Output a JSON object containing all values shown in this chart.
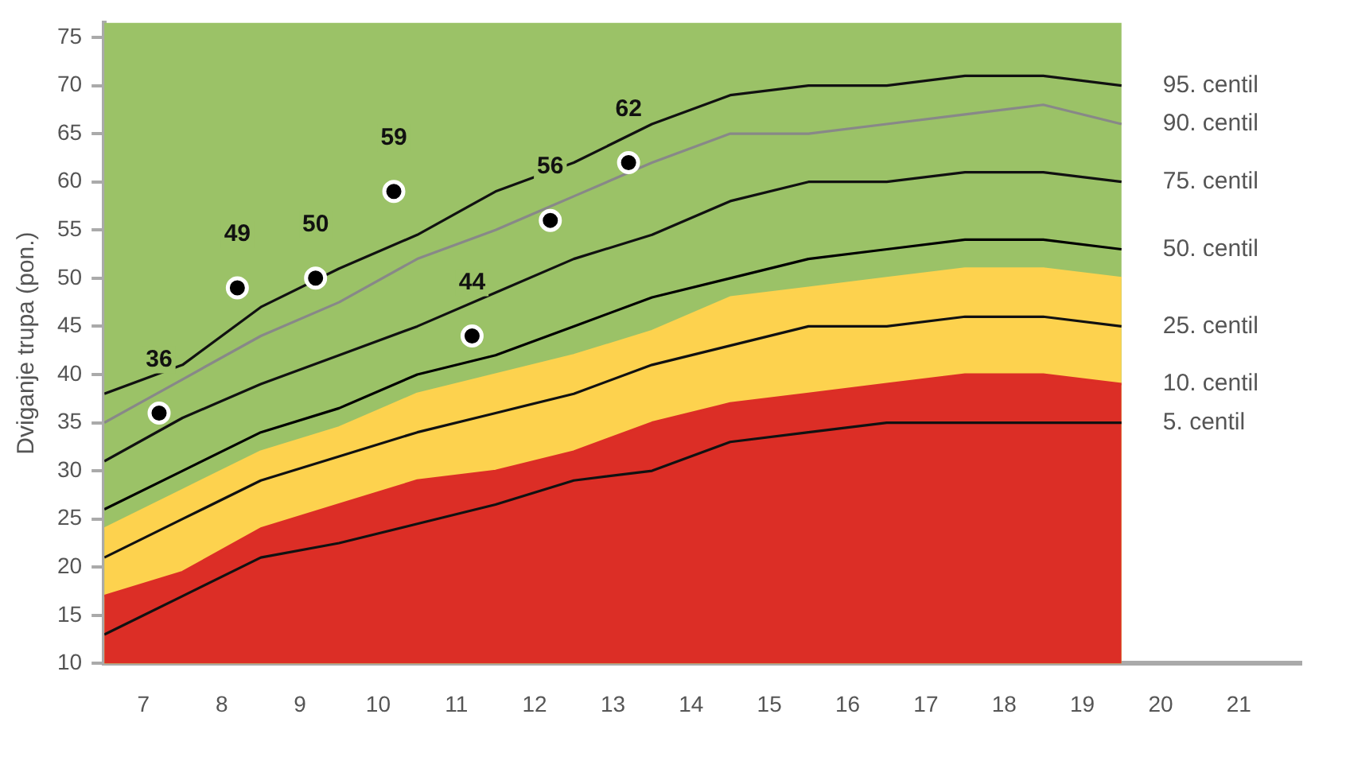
{
  "chart_data": {
    "type": "line",
    "ylabel": "Dviganje trupa (pon.)",
    "xlim": [
      6.5,
      21.8
    ],
    "ylim": [
      10,
      76.5
    ],
    "xticks": [
      7,
      8,
      9,
      10,
      11,
      12,
      13,
      14,
      15,
      16,
      17,
      18,
      19,
      20,
      21
    ],
    "yticks": [
      10,
      15,
      20,
      25,
      30,
      35,
      40,
      45,
      50,
      55,
      60,
      65,
      70,
      75
    ],
    "grid": false,
    "legend": false,
    "bands": [
      {
        "axis": "x",
        "from": 6.5,
        "to": 19.5,
        "color": "#9bc267"
      }
    ],
    "series": [
      {
        "name": "95. centil",
        "type": "line",
        "color": "#111111",
        "x": [
          6.5,
          7.5,
          8.5,
          9.5,
          10.5,
          11.5,
          12.5,
          13.5,
          14.5,
          15.5,
          16.5,
          17.5,
          18.5,
          19.5
        ],
        "values": [
          38,
          41,
          47,
          51,
          54.5,
          59,
          62,
          66,
          69,
          70,
          70,
          71,
          71,
          70
        ]
      },
      {
        "name": "90. centil",
        "type": "line",
        "color": "#888888",
        "x": [
          6.5,
          7.5,
          8.5,
          9.5,
          10.5,
          11.5,
          12.5,
          13.5,
          14.5,
          15.5,
          16.5,
          17.5,
          18.5,
          19.5
        ],
        "values": [
          35,
          39.5,
          44,
          47.5,
          52,
          55,
          58.5,
          62,
          65,
          65,
          66,
          67,
          68,
          66
        ]
      },
      {
        "name": "75. centil",
        "type": "line",
        "color": "#111111",
        "x": [
          6.5,
          7.5,
          8.5,
          9.5,
          10.5,
          11.5,
          12.5,
          13.5,
          14.5,
          15.5,
          16.5,
          17.5,
          18.5,
          19.5
        ],
        "values": [
          31,
          35.5,
          39,
          42,
          45,
          48.5,
          52,
          54.5,
          58,
          60,
          60,
          61,
          61,
          60
        ]
      },
      {
        "name": "50. centil",
        "type": "line",
        "color": "#000000",
        "x": [
          6.5,
          7.5,
          8.5,
          9.5,
          10.5,
          11.5,
          12.5,
          13.5,
          14.5,
          15.5,
          16.5,
          17.5,
          18.5,
          19.5
        ],
        "values": [
          26,
          30,
          34,
          36.5,
          40,
          42,
          45,
          48,
          50,
          52,
          53,
          54,
          54,
          53
        ]
      },
      {
        "type": "area",
        "color": "#fdd24e",
        "x": [
          6.5,
          7.5,
          8.5,
          9.5,
          10.5,
          11.5,
          12.5,
          13.5,
          14.5,
          15.5,
          16.5,
          17.5,
          18.5,
          19.5
        ],
        "values": [
          24,
          28,
          32,
          34.5,
          38,
          40,
          42,
          44.5,
          48,
          49,
          50,
          51,
          51,
          50
        ]
      },
      {
        "name": "25. centil",
        "type": "line",
        "color": "#111111",
        "x": [
          6.5,
          7.5,
          8.5,
          9.5,
          10.5,
          11.5,
          12.5,
          13.5,
          14.5,
          15.5,
          16.5,
          17.5,
          18.5,
          19.5
        ],
        "values": [
          21,
          25,
          29,
          31.5,
          34,
          36,
          38,
          41,
          43,
          45,
          45,
          46,
          46,
          45
        ]
      },
      {
        "name": "10. centil",
        "type": "area",
        "color": "#dc2e26",
        "x": [
          6.5,
          7.5,
          8.5,
          9.5,
          10.5,
          11.5,
          12.5,
          13.5,
          14.5,
          15.5,
          16.5,
          17.5,
          18.5,
          19.5
        ],
        "values": [
          17,
          19.5,
          24,
          26.5,
          29,
          30,
          32,
          35,
          37,
          38,
          39,
          40,
          40,
          39
        ]
      },
      {
        "name": "5. centil",
        "type": "line",
        "color": "#111111",
        "x": [
          6.5,
          7.5,
          8.5,
          9.5,
          10.5,
          11.5,
          12.5,
          13.5,
          14.5,
          15.5,
          16.5,
          17.5,
          18.5,
          19.5
        ],
        "values": [
          13,
          17,
          21,
          22.5,
          24.5,
          26.5,
          29,
          30,
          33,
          34,
          35,
          35,
          35,
          35
        ]
      },
      {
        "type": "scatter",
        "marker": "circle",
        "color": "#000000",
        "x": [
          7.2,
          8.2,
          9.2,
          10.2,
          11.2,
          12.2,
          13.2
        ],
        "values": [
          36,
          49,
          50,
          59,
          44,
          56,
          62
        ],
        "value_labels": [
          "36",
          "49",
          "50",
          "59",
          "44",
          "56",
          "62"
        ]
      }
    ]
  }
}
